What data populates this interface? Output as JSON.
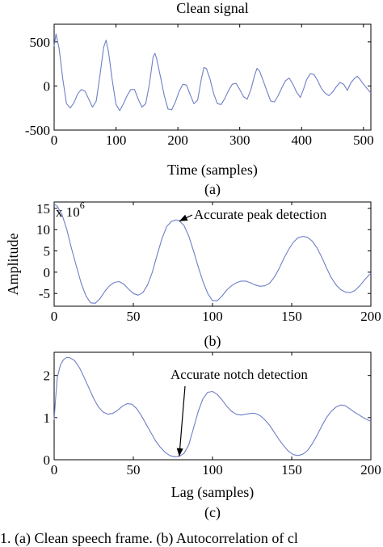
{
  "chart_data": [
    {
      "type": "line",
      "title": "Clean signal",
      "xlabel": "Time (samples)",
      "ylabel": "",
      "sub_caption": "(a)",
      "xlim": [
        0,
        512
      ],
      "ylim": [
        -500,
        700
      ],
      "xticks": [
        0,
        100,
        200,
        300,
        400,
        500
      ],
      "yticks": [
        -500,
        0,
        500
      ],
      "xtick_labels": [
        "0",
        "100",
        "200",
        "300",
        "400",
        "500"
      ],
      "ytick_labels": [
        "-500",
        "0",
        "500"
      ],
      "line_color": "#6f7fc6",
      "series": [
        {
          "x": [
            0,
            3,
            8,
            14,
            20,
            26,
            32,
            38,
            44,
            50,
            56,
            62,
            68,
            74,
            80,
            84,
            88,
            94,
            100,
            106,
            112,
            118,
            124,
            130,
            136,
            142,
            148,
            154,
            160,
            163,
            166,
            172,
            178,
            184,
            190,
            196,
            202,
            208,
            214,
            220,
            226,
            232,
            238,
            242,
            246,
            252,
            258,
            264,
            270,
            276,
            282,
            288,
            294,
            300,
            306,
            312,
            318,
            324,
            328,
            332,
            338,
            344,
            350,
            356,
            362,
            368,
            374,
            380,
            386,
            392,
            398,
            403,
            408,
            414,
            420,
            426,
            432,
            438,
            444,
            450,
            456,
            462,
            468,
            474,
            480,
            486,
            490,
            494,
            500,
            506,
            512
          ],
          "y": [
            450,
            590,
            430,
            80,
            -200,
            -250,
            -190,
            -90,
            -40,
            -60,
            -150,
            -240,
            -170,
            120,
            440,
            520,
            380,
            60,
            -210,
            -280,
            -200,
            -110,
            -40,
            -40,
            -150,
            -240,
            -200,
            20,
            330,
            370,
            300,
            100,
            -110,
            -260,
            -270,
            -180,
            -60,
            20,
            10,
            -100,
            -200,
            -160,
            80,
            210,
            200,
            80,
            -90,
            -200,
            -210,
            -140,
            -50,
            20,
            30,
            -40,
            -120,
            -150,
            -40,
            120,
            200,
            170,
            60,
            -60,
            -170,
            -180,
            -110,
            -20,
            60,
            90,
            20,
            -70,
            -130,
            -40,
            70,
            140,
            130,
            60,
            -30,
            -80,
            -110,
            -70,
            -10,
            40,
            20,
            -50,
            40,
            90,
            110,
            80,
            20,
            -30,
            -80
          ]
        }
      ]
    },
    {
      "type": "line",
      "title": "",
      "xlabel": "",
      "ylabel": "Amplitude",
      "y_multiplier": "x 10",
      "y_exponent": "6",
      "sub_caption": "(b)",
      "annotation": "Accurate peak detection",
      "annotation_target": [
        79,
        12
      ],
      "xlim": [
        0,
        200
      ],
      "ylim": [
        -8,
        16.5
      ],
      "xticks": [
        0,
        50,
        100,
        150,
        200
      ],
      "yticks": [
        -5,
        0,
        5,
        10,
        15
      ],
      "xtick_labels": [
        "0",
        "50",
        "100",
        "150",
        "200"
      ],
      "ytick_labels": [
        "-5",
        "0",
        "5",
        "10",
        "15"
      ],
      "line_color": "#6f7fc6",
      "series": [
        {
          "x": [
            0,
            2,
            5,
            8,
            11,
            14,
            17,
            20,
            23,
            26,
            29,
            32,
            35,
            38,
            41,
            44,
            47,
            50,
            53,
            56,
            59,
            62,
            65,
            68,
            71,
            74,
            77,
            79,
            82,
            85,
            88,
            91,
            94,
            97,
            100,
            103,
            106,
            109,
            112,
            115,
            118,
            121,
            124,
            127,
            130,
            133,
            136,
            139,
            142,
            145,
            148,
            151,
            154,
            157,
            160,
            163,
            166,
            169,
            172,
            175,
            178,
            181,
            184,
            187,
            190,
            193,
            196,
            199,
            200
          ],
          "y": [
            16,
            15.5,
            13.5,
            10,
            5.5,
            1.5,
            -2.5,
            -5.5,
            -7.2,
            -7.3,
            -6.2,
            -4.5,
            -3.2,
            -2.4,
            -2.2,
            -2.8,
            -4,
            -5,
            -5.4,
            -4.8,
            -3,
            0,
            4,
            7.8,
            10.7,
            11.9,
            12.3,
            12.1,
            11,
            8.5,
            5,
            1.2,
            -2.2,
            -5,
            -6.7,
            -6.7,
            -5.6,
            -4.2,
            -3.2,
            -2.5,
            -2.1,
            -2.1,
            -2.5,
            -3,
            -3.3,
            -3.2,
            -2.6,
            -1.2,
            0.8,
            3.2,
            5.3,
            7,
            8.1,
            8.4,
            8.2,
            7.3,
            5.7,
            3.5,
            1,
            -1.3,
            -3,
            -4.1,
            -4.7,
            -4.8,
            -4.3,
            -3.2,
            -1.8,
            -0.6,
            -0.3
          ]
        }
      ]
    },
    {
      "type": "line",
      "title": "",
      "xlabel": "Lag (samples)",
      "ylabel": "",
      "sub_caption": "(c)",
      "annotation": "Accurate notch detection",
      "annotation_target": [
        79,
        0.08
      ],
      "xlim": [
        0,
        200
      ],
      "ylim": [
        0,
        2.55
      ],
      "xticks": [
        0,
        50,
        100,
        150,
        200
      ],
      "yticks": [
        0,
        1,
        2
      ],
      "xtick_labels": [
        "0",
        "50",
        "100",
        "150",
        "200"
      ],
      "ytick_labels": [
        "0",
        "1",
        "2"
      ],
      "line_color": "#6f7fc6",
      "series": [
        {
          "x": [
            0,
            1,
            2,
            4,
            6,
            8,
            10,
            13,
            16,
            19,
            22,
            25,
            28,
            31,
            34,
            37,
            40,
            43,
            46,
            49,
            52,
            55,
            58,
            61,
            64,
            67,
            70,
            73,
            76,
            79,
            82,
            85,
            88,
            91,
            94,
            97,
            100,
            103,
            106,
            109,
            112,
            115,
            118,
            121,
            124,
            127,
            130,
            133,
            136,
            139,
            142,
            145,
            148,
            151,
            154,
            157,
            160,
            163,
            166,
            169,
            172,
            175,
            178,
            181,
            184,
            187,
            190,
            193,
            196,
            199,
            200
          ],
          "y": [
            0.95,
            1.5,
            1.95,
            2.25,
            2.38,
            2.43,
            2.42,
            2.35,
            2.18,
            1.95,
            1.7,
            1.45,
            1.25,
            1.13,
            1.08,
            1.1,
            1.17,
            1.27,
            1.33,
            1.32,
            1.22,
            1.05,
            0.85,
            0.65,
            0.45,
            0.3,
            0.18,
            0.1,
            0.07,
            0.08,
            0.15,
            0.35,
            0.75,
            1.15,
            1.45,
            1.6,
            1.62,
            1.55,
            1.42,
            1.27,
            1.15,
            1.08,
            1.06,
            1.08,
            1.1,
            1.1,
            1.05,
            0.95,
            0.82,
            0.65,
            0.48,
            0.33,
            0.2,
            0.12,
            0.1,
            0.13,
            0.22,
            0.38,
            0.58,
            0.8,
            1.0,
            1.15,
            1.25,
            1.3,
            1.28,
            1.2,
            1.12,
            1.05,
            0.98,
            0.93,
            0.9
          ]
        }
      ]
    }
  ],
  "figure_caption": "1. (a) Clean speech frame. (b) Autocorrelation of cl"
}
